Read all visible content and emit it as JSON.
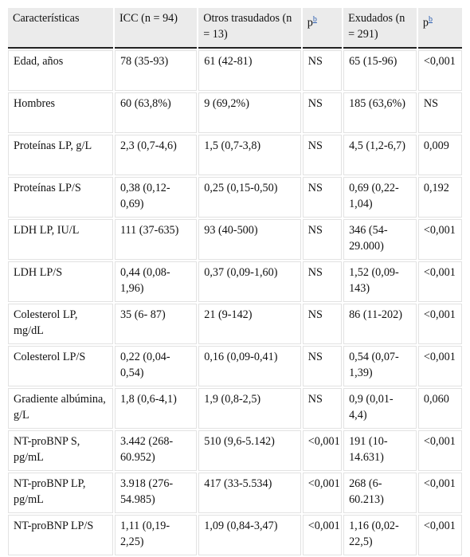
{
  "table": {
    "headers": [
      {
        "text": "Características",
        "sup": ""
      },
      {
        "text": "ICC (n = 94)",
        "sup": ""
      },
      {
        "text": "Otros trasudados (n = 13)",
        "sup": ""
      },
      {
        "text": "p",
        "sup": "b"
      },
      {
        "text": "Exudados (n = 291)",
        "sup": ""
      },
      {
        "text": "p",
        "sup": "b"
      }
    ],
    "rows": [
      [
        "Edad, años",
        "78 (35-93)",
        "61 (42-81)",
        "NS",
        "65 (15-96)",
        "<0,001"
      ],
      [
        "Hombres",
        "60 (63,8%)",
        "9 (69,2%)",
        "NS",
        "185 (63,6%)",
        "NS"
      ],
      [
        "Proteínas LP, g/L",
        "2,3 (0,7-4,6)",
        "1,5 (0,7-3,8)",
        "NS",
        "4,5 (1,2-6,7)",
        "0,009"
      ],
      [
        "Proteínas LP/S",
        "0,38 (0,12-0,69)",
        "0,25 (0,15-0,50)",
        "NS",
        "0,69 (0,22-1,04)",
        "0,192"
      ],
      [
        "LDH LP, IU/L",
        "111 (37-635)",
        "93 (40-500)",
        "NS",
        "346 (54-29.000)",
        "<0,001"
      ],
      [
        "LDH LP/S",
        "0,44 (0,08-1,96)",
        "0,37 (0,09-1,60)",
        "NS",
        "1,52 (0,09-143)",
        "<0,001"
      ],
      [
        "Colesterol LP, mg/dL",
        "35 (6- 87)",
        "21 (9-142)",
        "NS",
        "86 (11-202)",
        "<0,001"
      ],
      [
        "Colesterol LP/S",
        "0,22 (0,04-0,54)",
        "0,16 (0,09-0,41)",
        "NS",
        "0,54 (0,07-1,39)",
        "<0,001"
      ],
      [
        "Gradiente albúmina, g/L",
        "1,8 (0,6-4,1)",
        "1,9 (0,8-2,5)",
        "NS",
        "0,9 (0,01-4,4)",
        "0,060"
      ],
      [
        "NT-proBNP S, pg/mL",
        "3.442 (268-60.952)",
        "510 (9,6-5.142)",
        "<0,001",
        "191 (10-14.631)",
        "<0,001"
      ],
      [
        "NT-proBNP LP, pg/mL",
        "3.918 (276-54.985)",
        "417 (33-5.534)",
        "<0,001",
        "268 (6-60.213)",
        "<0,001"
      ],
      [
        "NT-proBNP LP/S",
        "1,11 (0,19-2,25)",
        "1,09 (0,84-3,47)",
        "<0,001",
        "1,16 (0,02-22,5)",
        "<0,001"
      ]
    ]
  }
}
